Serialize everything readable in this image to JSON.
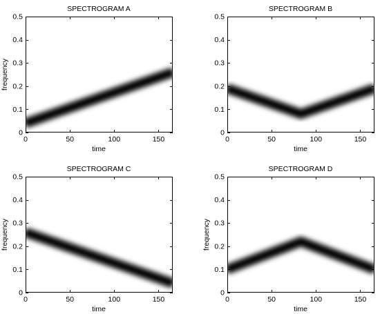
{
  "figure": {
    "panels": [
      {
        "title": "SPECTROGRAM A",
        "xlabel": "time",
        "ylabel": "frequency"
      },
      {
        "title": "SPECTROGRAM B",
        "xlabel": "time",
        "ylabel": ""
      },
      {
        "title": "SPECTROGRAM C",
        "xlabel": "time",
        "ylabel": "frequency"
      },
      {
        "title": "SPECTROGRAM D",
        "xlabel": "time",
        "ylabel": "frequency"
      }
    ]
  },
  "chart_data": [
    {
      "type": "heatmap",
      "title": "SPECTROGRAM A",
      "xlabel": "time",
      "ylabel": "frequency",
      "xlim": [
        0,
        166
      ],
      "ylim": [
        0,
        0.5
      ],
      "xticks": [
        0,
        50,
        100,
        150
      ],
      "yticks": [
        0,
        0.1,
        0.2,
        0.3,
        0.4,
        0.5
      ],
      "colormap": "gray (dark = high magnitude)",
      "ridge": {
        "x": [
          0,
          166
        ],
        "y": [
          0.04,
          0.26
        ]
      }
    },
    {
      "type": "heatmap",
      "title": "SPECTROGRAM B",
      "xlabel": "time",
      "ylabel": "",
      "xlim": [
        0,
        166
      ],
      "ylim": [
        0,
        0.5
      ],
      "xticks": [
        0,
        50,
        100,
        150
      ],
      "yticks": [
        0,
        0.1,
        0.2,
        0.3,
        0.4,
        0.5
      ],
      "colormap": "gray (dark = high magnitude)",
      "ridge": {
        "x": [
          0,
          83,
          166
        ],
        "y": [
          0.19,
          0.08,
          0.19
        ]
      }
    },
    {
      "type": "heatmap",
      "title": "SPECTROGRAM C",
      "xlabel": "time",
      "ylabel": "frequency",
      "xlim": [
        0,
        166
      ],
      "ylim": [
        0,
        0.5
      ],
      "xticks": [
        0,
        50,
        100,
        150
      ],
      "yticks": [
        0,
        0.1,
        0.2,
        0.3,
        0.4,
        0.5
      ],
      "colormap": "gray (dark = high magnitude)",
      "ridge": {
        "x": [
          0,
          166
        ],
        "y": [
          0.26,
          0.04
        ]
      }
    },
    {
      "type": "heatmap",
      "title": "SPECTROGRAM D",
      "xlabel": "time",
      "ylabel": "frequency",
      "xlim": [
        0,
        166
      ],
      "ylim": [
        0,
        0.5
      ],
      "xticks": [
        0,
        50,
        100,
        150
      ],
      "yticks": [
        0,
        0.1,
        0.2,
        0.3,
        0.4,
        0.5
      ],
      "colormap": "gray (dark = high magnitude)",
      "ridge": {
        "x": [
          0,
          83,
          166
        ],
        "y": [
          0.1,
          0.22,
          0.1
        ]
      }
    }
  ]
}
